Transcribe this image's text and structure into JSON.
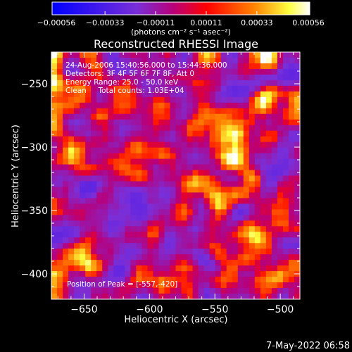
{
  "chart_data": {
    "type": "heatmap",
    "title": "Reconstructed RHESSI Image",
    "xlabel": "Heliocentric X (arcsec)",
    "ylabel": "Heliocentric Y (arcsec)",
    "xlim": [
      -675,
      -485
    ],
    "ylim": [
      -420,
      -225
    ],
    "x_ticks": [
      -650,
      -600,
      -550,
      -500
    ],
    "y_ticks": [
      -250,
      -300,
      -350,
      -400
    ],
    "x_tick_labels": [
      "−650",
      "−600",
      "−550",
      "−500"
    ],
    "y_tick_labels": [
      "−250",
      "−300",
      "−350",
      "−400"
    ],
    "colorbar": {
      "range": [
        -0.00056,
        0.00056
      ],
      "ticks": [
        -0.00056,
        -0.00033,
        -0.00011,
        0.00011,
        0.00033,
        0.00056
      ],
      "tick_labels": [
        "−0.00056",
        "−0.00033",
        "−0.00011",
        "0.00011",
        "0.00033",
        "0.00056"
      ],
      "units": "(photons cm⁻² s⁻¹ asec⁻²)",
      "colors": [
        "#0000ff",
        "#7a2fd8",
        "#b8007a",
        "#ff0000",
        "#ff8000",
        "#ffff40",
        "#ffffff"
      ]
    },
    "annotations": {
      "time_range": "24-Aug-2006 15:40:56.000 to 15:44:36.000",
      "detectors": "Detectors: 3F 4F 5F 6F 7F 8F, Att 0",
      "energy_range": "Energy Range: 25.0 - 50.0 keV",
      "clean_info": "Clean     Total counts: 1.03E+04",
      "peak_position": "Position of Peak = [-557,-420]"
    }
  },
  "footer": {
    "timestamp": "7-May-2022 06:58"
  }
}
